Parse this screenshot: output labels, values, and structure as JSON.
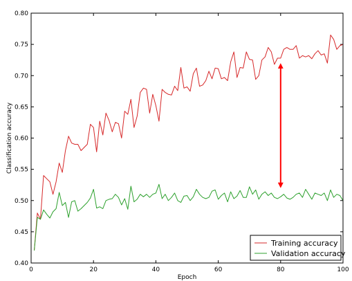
{
  "chart_data": {
    "type": "line",
    "xlabel": "Epoch",
    "ylabel": "Classification accuracy",
    "xlim": [
      0,
      100
    ],
    "ylim": [
      0.4,
      0.8
    ],
    "x_ticks": [
      0,
      20,
      40,
      60,
      80,
      100
    ],
    "y_ticks": [
      0.4,
      0.45,
      0.5,
      0.55,
      0.6,
      0.65,
      0.7,
      0.75,
      0.8
    ],
    "grid": false,
    "legend_position": "lower-right",
    "x": [
      1,
      2,
      3,
      4,
      5,
      6,
      7,
      8,
      9,
      10,
      11,
      12,
      13,
      14,
      15,
      16,
      17,
      18,
      19,
      20,
      21,
      22,
      23,
      24,
      25,
      26,
      27,
      28,
      29,
      30,
      31,
      32,
      33,
      34,
      35,
      36,
      37,
      38,
      39,
      40,
      41,
      42,
      43,
      44,
      45,
      46,
      47,
      48,
      49,
      50,
      51,
      52,
      53,
      54,
      55,
      56,
      57,
      58,
      59,
      60,
      61,
      62,
      63,
      64,
      65,
      66,
      67,
      68,
      69,
      70,
      71,
      72,
      73,
      74,
      75,
      76,
      77,
      78,
      79,
      80,
      81,
      82,
      83,
      84,
      85,
      86,
      87,
      88,
      89,
      90,
      91,
      92,
      93,
      94,
      95,
      96,
      97,
      98,
      99,
      100
    ],
    "series": [
      {
        "name": "Training accuracy",
        "color": "#d62728",
        "values": [
          0.42,
          0.48,
          0.47,
          0.54,
          0.535,
          0.53,
          0.51,
          0.53,
          0.56,
          0.545,
          0.58,
          0.603,
          0.592,
          0.59,
          0.59,
          0.58,
          0.585,
          0.59,
          0.622,
          0.617,
          0.578,
          0.627,
          0.605,
          0.64,
          0.628,
          0.61,
          0.625,
          0.623,
          0.6,
          0.643,
          0.638,
          0.662,
          0.617,
          0.635,
          0.673,
          0.68,
          0.678,
          0.64,
          0.67,
          0.652,
          0.627,
          0.678,
          0.673,
          0.67,
          0.669,
          0.683,
          0.676,
          0.713,
          0.68,
          0.682,
          0.675,
          0.703,
          0.712,
          0.683,
          0.685,
          0.692,
          0.707,
          0.695,
          0.712,
          0.711,
          0.695,
          0.697,
          0.692,
          0.722,
          0.738,
          0.697,
          0.713,
          0.712,
          0.738,
          0.726,
          0.725,
          0.694,
          0.7,
          0.725,
          0.73,
          0.745,
          0.738,
          0.718,
          0.728,
          0.728,
          0.742,
          0.745,
          0.742,
          0.742,
          0.748,
          0.728,
          0.732,
          0.73,
          0.732,
          0.727,
          0.735,
          0.74,
          0.733,
          0.735,
          0.72,
          0.765,
          0.758,
          0.742,
          0.748,
          0.75
        ]
      },
      {
        "name": "Validation accuracy",
        "color": "#2ca02c",
        "values": [
          0.42,
          0.473,
          0.47,
          0.485,
          0.478,
          0.472,
          0.482,
          0.487,
          0.513,
          0.492,
          0.497,
          0.473,
          0.498,
          0.5,
          0.483,
          0.487,
          0.492,
          0.497,
          0.504,
          0.518,
          0.488,
          0.49,
          0.487,
          0.5,
          0.502,
          0.503,
          0.51,
          0.505,
          0.493,
          0.503,
          0.486,
          0.523,
          0.498,
          0.502,
          0.51,
          0.506,
          0.51,
          0.505,
          0.51,
          0.512,
          0.526,
          0.503,
          0.51,
          0.5,
          0.505,
          0.512,
          0.5,
          0.497,
          0.507,
          0.508,
          0.5,
          0.506,
          0.518,
          0.51,
          0.505,
          0.503,
          0.505,
          0.515,
          0.517,
          0.502,
          0.508,
          0.512,
          0.498,
          0.514,
          0.503,
          0.507,
          0.516,
          0.505,
          0.505,
          0.522,
          0.51,
          0.517,
          0.502,
          0.51,
          0.514,
          0.508,
          0.512,
          0.505,
          0.503,
          0.506,
          0.51,
          0.504,
          0.502,
          0.505,
          0.51,
          0.512,
          0.505,
          0.518,
          0.51,
          0.502,
          0.512,
          0.51,
          0.508,
          0.512,
          0.5,
          0.517,
          0.505,
          0.51,
          0.508,
          0.5
        ]
      }
    ],
    "annotations": [
      {
        "type": "double-arrow",
        "color": "#ff0000",
        "x": 80,
        "y_from": 0.52,
        "y_to": 0.72
      }
    ]
  }
}
